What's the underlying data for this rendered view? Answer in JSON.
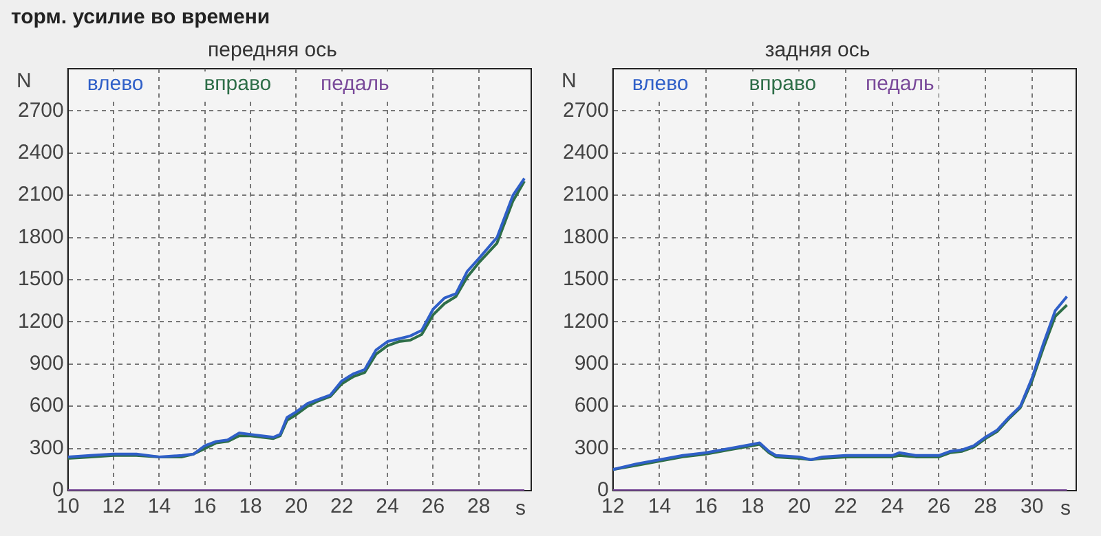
{
  "chart_data": [
    {
      "type": "line",
      "title": "передняя ось",
      "xlabel": "s",
      "ylabel": "N",
      "annotations": [
        "торм. усилие во времени"
      ],
      "x": [
        10,
        11,
        12,
        13,
        14,
        15,
        15.5,
        16,
        16.5,
        17,
        17.5,
        18,
        18.5,
        19,
        19.3,
        19.6,
        20,
        20.5,
        21,
        21.5,
        22,
        22.5,
        23,
        23.5,
        24,
        24.5,
        25,
        25.5,
        26,
        26.5,
        27,
        27.5,
        28,
        28.8,
        29.5,
        30
      ],
      "series": [
        {
          "name": "влево",
          "color": "#2f5fc8",
          "values": [
            240,
            250,
            260,
            260,
            240,
            250,
            260,
            320,
            350,
            360,
            410,
            400,
            390,
            380,
            400,
            520,
            560,
            620,
            650,
            680,
            780,
            830,
            860,
            1000,
            1060,
            1080,
            1100,
            1140,
            1290,
            1370,
            1400,
            1560,
            1650,
            1800,
            2100,
            2220
          ]
        },
        {
          "name": "вправо",
          "color": "#2e6e48",
          "values": [
            230,
            240,
            250,
            250,
            240,
            240,
            260,
            300,
            340,
            350,
            390,
            390,
            380,
            370,
            390,
            500,
            540,
            600,
            640,
            670,
            760,
            810,
            840,
            970,
            1030,
            1060,
            1070,
            1110,
            1250,
            1330,
            1380,
            1520,
            1620,
            1760,
            2060,
            2200
          ]
        },
        {
          "name": "педаль",
          "color": "#7a4a9a",
          "values": [
            0,
            0,
            0,
            0,
            0,
            0,
            0,
            0,
            0,
            0,
            0,
            0,
            0,
            0,
            0,
            0,
            0,
            0,
            0,
            0,
            0,
            0,
            0,
            0,
            0,
            0,
            0,
            0,
            0,
            0,
            0,
            0,
            0,
            0,
            0,
            0
          ]
        }
      ],
      "xlim": [
        10,
        30.3
      ],
      "xticks": [
        10,
        12,
        14,
        16,
        18,
        20,
        22,
        24,
        26,
        28
      ],
      "ylim": [
        0,
        3000
      ],
      "yticks": [
        0,
        300,
        600,
        900,
        1200,
        1500,
        1800,
        2100,
        2400,
        2700
      ],
      "grid": true,
      "legend": "top",
      "line_style": "solid"
    },
    {
      "type": "line",
      "title": "задняя ось",
      "xlabel": "s",
      "ylabel": "N",
      "x": [
        12,
        13,
        14,
        15,
        16,
        17,
        18,
        18.3,
        18.7,
        19,
        20,
        20.5,
        21,
        22,
        23,
        24,
        24.3,
        25,
        26,
        26.5,
        27,
        27.5,
        28,
        28.5,
        29,
        29.5,
        30,
        30.5,
        31,
        31.5
      ],
      "series": [
        {
          "name": "влево",
          "color": "#2f5fc8",
          "values": [
            150,
            190,
            220,
            250,
            270,
            300,
            330,
            340,
            280,
            250,
            240,
            220,
            240,
            250,
            250,
            250,
            270,
            250,
            250,
            280,
            290,
            320,
            380,
            430,
            520,
            600,
            800,
            1050,
            1280,
            1380
          ]
        },
        {
          "name": "вправо",
          "color": "#2e6e48",
          "values": [
            150,
            180,
            210,
            240,
            260,
            290,
            320,
            330,
            270,
            240,
            230,
            220,
            230,
            240,
            240,
            240,
            250,
            240,
            240,
            270,
            280,
            310,
            370,
            420,
            510,
            590,
            780,
            1020,
            1240,
            1320
          ]
        },
        {
          "name": "педаль",
          "color": "#7a4a9a",
          "values": [
            0,
            0,
            0,
            0,
            0,
            0,
            0,
            0,
            0,
            0,
            0,
            0,
            0,
            0,
            0,
            0,
            0,
            0,
            0,
            0,
            0,
            0,
            0,
            0,
            0,
            0,
            0,
            0,
            0,
            0
          ]
        }
      ],
      "xlim": [
        12,
        31.9
      ],
      "xticks": [
        12,
        14,
        16,
        18,
        20,
        22,
        24,
        26,
        28,
        30
      ],
      "ylim": [
        0,
        3000
      ],
      "yticks": [
        0,
        300,
        600,
        900,
        1200,
        1500,
        1800,
        2100,
        2400,
        2700
      ],
      "grid": true,
      "legend": "top",
      "line_style": "solid"
    }
  ]
}
